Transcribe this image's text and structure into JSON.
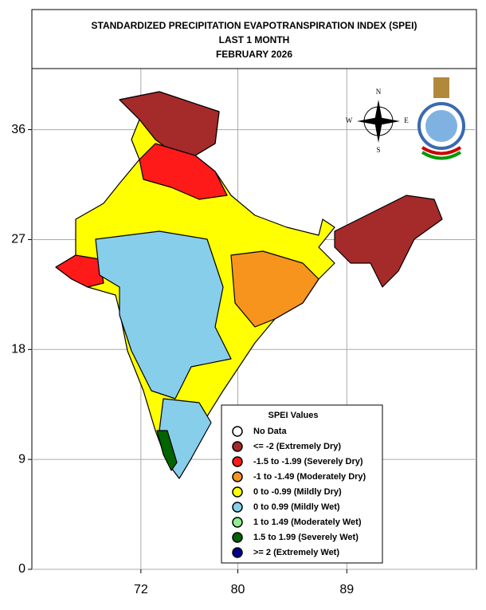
{
  "header": {
    "title_lines": [
      "STANDARDIZED PRECIPITATION EVAPOTRANSPIRATION INDEX (SPEI)",
      "LAST 1 MONTH",
      "FEBRUARY 2026"
    ]
  },
  "map": {
    "xlim": [
      63,
      99.7
    ],
    "ylim": [
      0,
      41
    ],
    "xticks": [
      72,
      80,
      89
    ],
    "yticks": [
      0,
      9,
      18,
      27,
      36
    ],
    "grid": true,
    "compass": [
      "N",
      "E",
      "S",
      "W"
    ]
  },
  "legend": {
    "title": "SPEI Values",
    "entries": [
      {
        "label": "No Data",
        "color": "#ffffff"
      },
      {
        "label": "<= -2 (Extremely Dry)",
        "color": "#a52a2a"
      },
      {
        "label": "-1.5 to -1.99 (Severely Dry)",
        "color": "#ff1a1a"
      },
      {
        "label": "-1 to -1.49 (Moderately Dry)",
        "color": "#f7941d"
      },
      {
        "label": "0 to -0.99 (Mildly  Dry)",
        "color": "#ffff00"
      },
      {
        "label": "0 to 0.99 (Mildly  Wet)",
        "color": "#87ceeb"
      },
      {
        "label": "1 to 1.49 (Moderately Wet)",
        "color": "#90ee90"
      },
      {
        "label": "1.5 to 1.99 (Severely Wet)",
        "color": "#006400"
      },
      {
        "label": ">= 2 (Extremely Wet)",
        "color": "#00008b"
      }
    ]
  }
}
